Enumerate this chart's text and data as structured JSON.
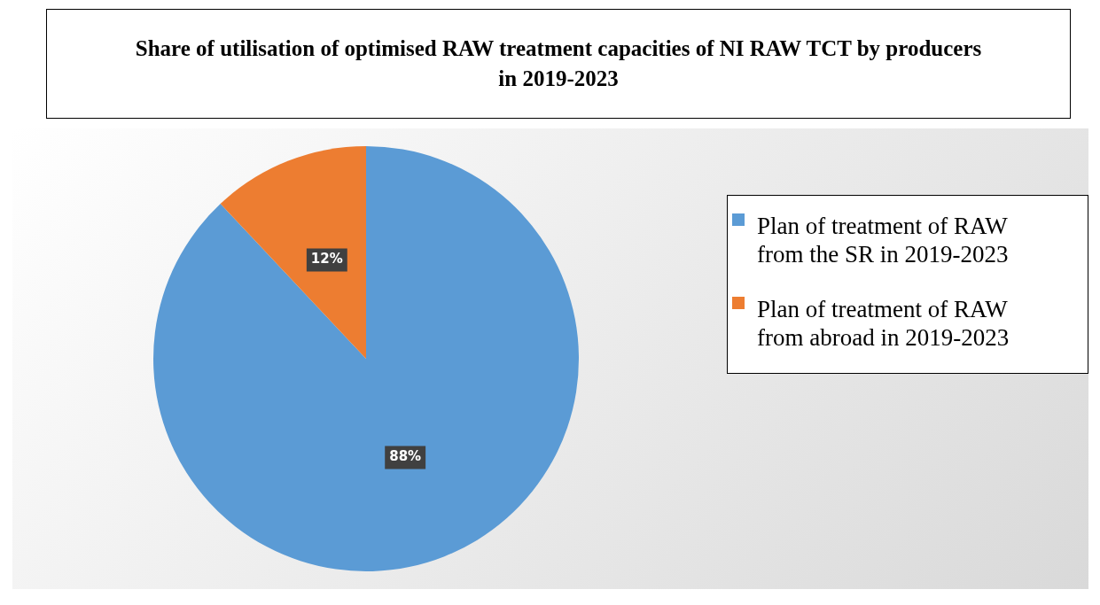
{
  "chart_data": {
    "type": "pie",
    "title": "Share of utilisation of optimised RAW treatment capacities of NI RAW TCT by producers in 2019-2023",
    "categories": [
      "Plan of treatment of RAW from the SR in 2019-2023",
      "Plan of treatment of RAW from abroad in 2019-2023"
    ],
    "values": [
      88,
      12
    ],
    "colors": [
      "#5b9bd5",
      "#ed7d31"
    ],
    "value_labels": [
      "88%",
      "12%"
    ],
    "legend": "right"
  }
}
